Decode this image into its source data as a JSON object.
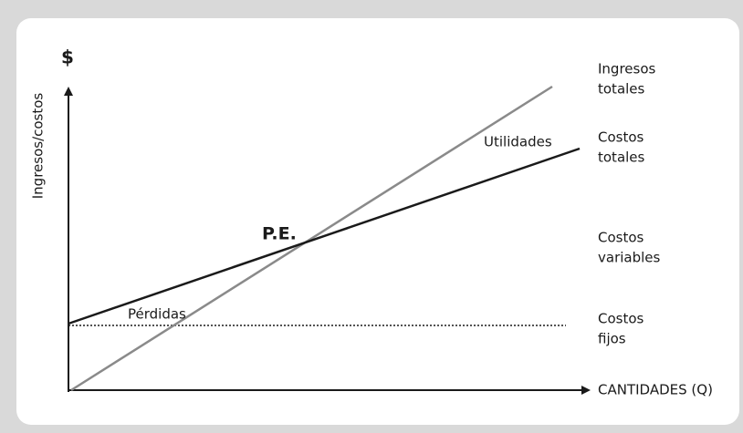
{
  "axis": {
    "y_symbol": "$",
    "y_label": "Ingresos/costos",
    "x_label": "CANTIDADES (Q)"
  },
  "regions": {
    "breakeven": "P.E.",
    "profit": "Utilidades",
    "loss": "Pérdidas"
  },
  "line_labels": [
    {
      "lines": [
        "Ingresos",
        "totales"
      ]
    },
    {
      "lines": [
        "Costos",
        "totales"
      ]
    },
    {
      "lines": [
        "Costos",
        "variables"
      ]
    },
    {
      "lines": [
        "Costos",
        "fijos"
      ]
    }
  ]
}
